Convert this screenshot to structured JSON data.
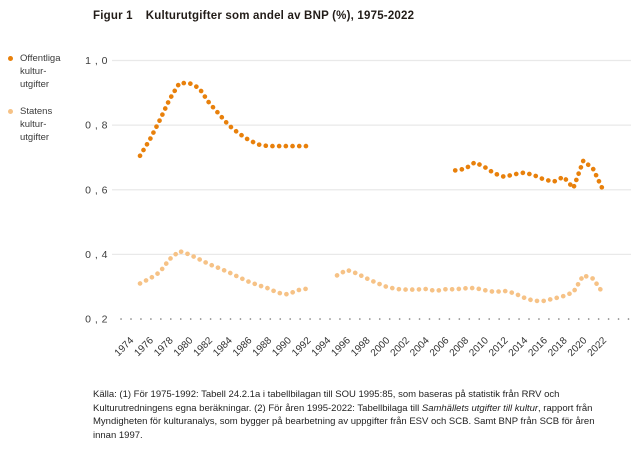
{
  "header": {
    "figure_label": "Figur 1",
    "figure_title": "Kulturutgifter som andel av BNP (%), 1975-2022"
  },
  "legend": {
    "items": [
      {
        "name": "offentliga",
        "color": "#e8800b",
        "label_lines": [
          "Offentliga",
          "kultur-",
          "utgifter"
        ]
      },
      {
        "name": "statens",
        "color": "#f6c286",
        "label_lines": [
          "Statens",
          "kultur-",
          "utgifter"
        ]
      }
    ]
  },
  "chart_data": {
    "type": "line",
    "style": "dotted-line",
    "title": "Kulturutgifter som andel av BNP (%), 1975-2022",
    "xlabel": "",
    "ylabel": "",
    "ylim": [
      0.2,
      1.05
    ],
    "xlim": [
      1974,
      2023
    ],
    "grid": "horizontal",
    "legend_position": "left",
    "yticks": [
      {
        "value": 1.0,
        "label": "1 , 0"
      },
      {
        "value": 0.8,
        "label": "0 , 8"
      },
      {
        "value": 0.6,
        "label": "0 , 6"
      },
      {
        "value": 0.4,
        "label": "0 , 4"
      },
      {
        "value": 0.2,
        "label": "0 , 2"
      }
    ],
    "xticks": [
      1974,
      1976,
      1978,
      1980,
      1982,
      1984,
      1986,
      1988,
      1990,
      1992,
      1994,
      1996,
      1998,
      2000,
      2002,
      2004,
      2006,
      2008,
      2010,
      2012,
      2014,
      2016,
      2018,
      2020,
      2022
    ],
    "series": [
      {
        "name": "Offentliga kulturutgifter",
        "color": "#e8800b",
        "segments": [
          {
            "start_year": 1975,
            "values": [
              0.705,
              0.755,
              0.815,
              0.88,
              0.93,
              0.93,
              0.915,
              0.87,
              0.835,
              0.8,
              0.775,
              0.755,
              0.74,
              0.735,
              0.735,
              0.735,
              0.735,
              0.735
            ]
          },
          {
            "start_year": 2007,
            "values": [
              0.66,
              0.665,
              0.685,
              0.67,
              0.65,
              0.64,
              0.648,
              0.653,
              0.645,
              0.632,
              0.625,
              0.64,
              0.605,
              0.69,
              0.665,
              0.6
            ]
          }
        ]
      },
      {
        "name": "Statens kulturutgifter",
        "color": "#f6c286",
        "segments": [
          {
            "start_year": 1975,
            "values": [
              0.31,
              0.325,
              0.345,
              0.385,
              0.41,
              0.4,
              0.385,
              0.37,
              0.358,
              0.345,
              0.33,
              0.316,
              0.305,
              0.295,
              0.281,
              0.276,
              0.289,
              0.294
            ]
          },
          {
            "start_year": 1995,
            "values": [
              0.335,
              0.352,
              0.341,
              0.326,
              0.312,
              0.3,
              0.293,
              0.291,
              0.291,
              0.293,
              0.287,
              0.292,
              0.292,
              0.295,
              0.296,
              0.289,
              0.284,
              0.287,
              0.28,
              0.266,
              0.256,
              0.256,
              0.263,
              0.271,
              0.283,
              0.335,
              0.325,
              0.28
            ]
          }
        ]
      }
    ]
  },
  "footnote": {
    "parts": [
      {
        "text": "Källa: (1) För 1975-1992: Tabell 24.2.1a  i tabellbilagan till SOU 1995:85, som baseras på statistik från RRV och Kulturutredningens egna beräkningar. (2) För åren 1995-2022: Tabellbilaga till ",
        "italic": false
      },
      {
        "text": "Samhällets utgifter till kultur",
        "italic": true
      },
      {
        "text": ", rapport från Myndigheten för kulturanalys, som bygger på bearbetning av uppgifter från ESV och SCB. Samt BNP från SCB för åren innan 1997.",
        "italic": false
      }
    ]
  }
}
